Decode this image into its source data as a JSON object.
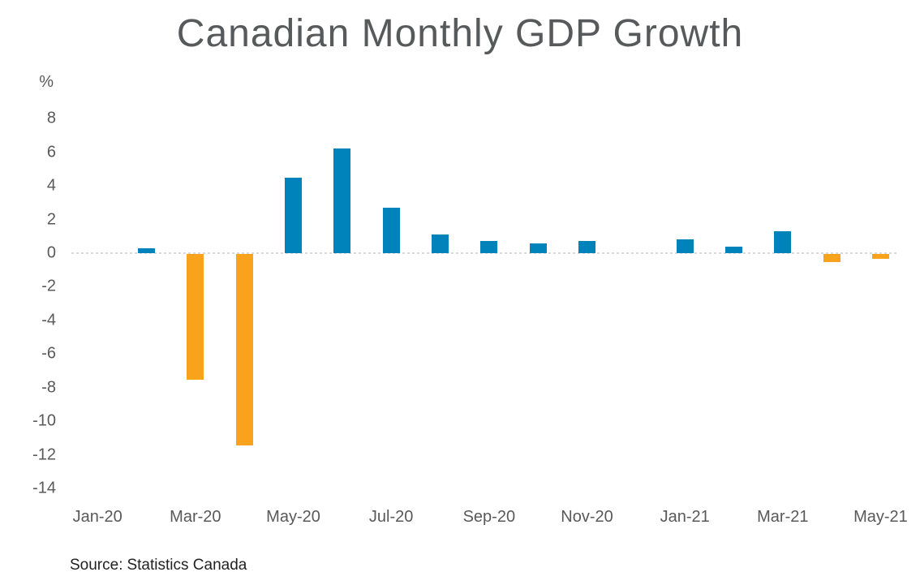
{
  "page": {
    "source_label": "Source:",
    "source_value": "Statistics Canada"
  },
  "chart_data": {
    "type": "bar",
    "title": "Canadian Monthly GDP Growth",
    "unit_label": "%",
    "xlabel": "",
    "ylabel": "%",
    "categories": [
      "Jan-20",
      "Feb-20",
      "Mar-20",
      "Apr-20",
      "May-20",
      "Jun-20",
      "Jul-20",
      "Aug-20",
      "Sep-20",
      "Oct-20",
      "Nov-20",
      "Dec-20",
      "Jan-21",
      "Feb-21",
      "Mar-21",
      "Apr-21",
      "May-21"
    ],
    "values": [
      0.0,
      0.3,
      -7.5,
      -11.4,
      4.5,
      6.2,
      2.7,
      1.1,
      0.7,
      0.6,
      0.7,
      0.0,
      0.8,
      0.4,
      1.3,
      -0.5,
      -0.3
    ],
    "x_tick_labels": [
      "Jan-20",
      "Mar-20",
      "May-20",
      "Jul-20",
      "Sep-20",
      "Nov-20",
      "Jan-21",
      "Mar-21",
      "May-21"
    ],
    "y_ticks": [
      8,
      6,
      4,
      2,
      0,
      -2,
      -4,
      -6,
      -8,
      -10,
      -12,
      -14
    ],
    "ylim": [
      -14,
      8
    ],
    "grid": "zero-line-only",
    "legend": "none",
    "colors": {
      "positive": "#0082BA",
      "negative": "#F9A21C",
      "title": "#58595B",
      "axis_labels": "#595959",
      "gridline": "#D9D9D9",
      "source_text": "#222222"
    }
  }
}
